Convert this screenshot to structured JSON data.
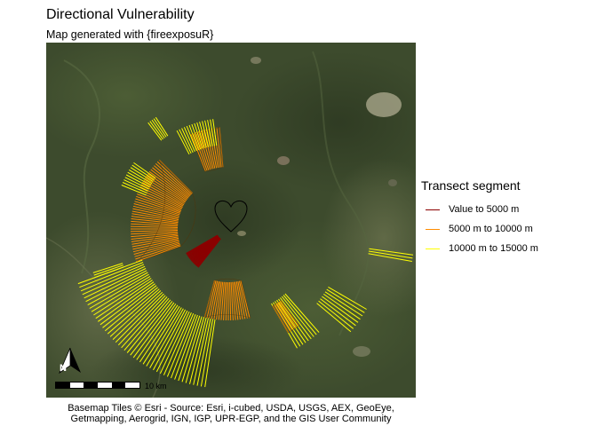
{
  "title": "Directional Vulnerability",
  "subtitle": "Map generated with {fireexposuR}",
  "legend": {
    "title": "Transect segment",
    "items": [
      {
        "label": "Value to 5000 m",
        "color": "#8b0000"
      },
      {
        "label": "5000 m to 10000 m",
        "color": "#ff8c00"
      },
      {
        "label": "10000 m to 15000 m",
        "color": "#ffff00"
      }
    ]
  },
  "colors": {
    "segment_inner": "#8b0000",
    "segment_middle": "#ff8c00",
    "segment_outer": "#ffff00",
    "basemap_forest": "#3c4a2c",
    "aoi_outline": "#000000"
  },
  "scale_bar": {
    "label": "10 km"
  },
  "north_arrow": {
    "label": "N",
    "icon": "north-arrow-icon"
  },
  "caption": {
    "line1": "Basemap Tiles © Esri - Source: Esri, i-cubed, USDA, USGS, AEX, GeoEye,",
    "line2": "Getmapping, Aerogrid, IGN, IGP, UPR-EGP, and the GIS User Community"
  }
}
